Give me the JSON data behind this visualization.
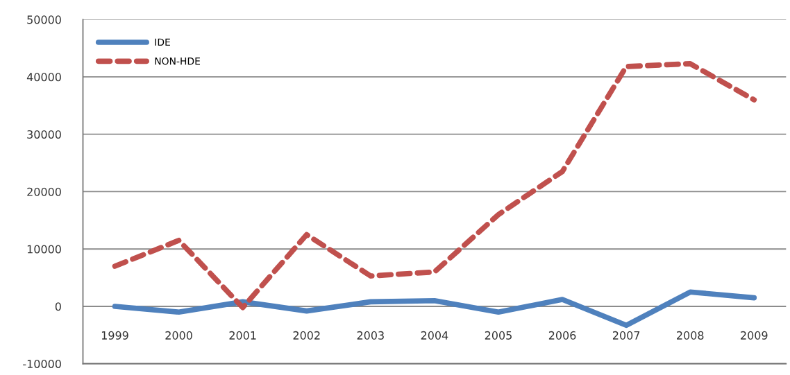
{
  "chart_data": {
    "type": "line",
    "categories": [
      "1999",
      "2000",
      "2001",
      "2002",
      "2003",
      "2004",
      "2005",
      "2006",
      "2007",
      "2008",
      "2009"
    ],
    "series": [
      {
        "name": "IDE",
        "color": "#4f81bd",
        "line_style": "solid",
        "values": [
          0,
          -1000,
          800,
          -800,
          800,
          1000,
          -1000,
          1200,
          -3300,
          2500,
          1500
        ]
      },
      {
        "name": "NON-HDE",
        "color": "#c0504d",
        "line_style": "dashed",
        "values": [
          7000,
          11500,
          -200,
          12500,
          5300,
          6000,
          16000,
          23500,
          41800,
          42300,
          36000
        ]
      }
    ],
    "ylim": [
      -10000,
      50000
    ],
    "yticks": [
      -10000,
      0,
      10000,
      20000,
      30000,
      40000,
      50000
    ],
    "grid": "y",
    "legend": "top left",
    "marker": "none"
  }
}
